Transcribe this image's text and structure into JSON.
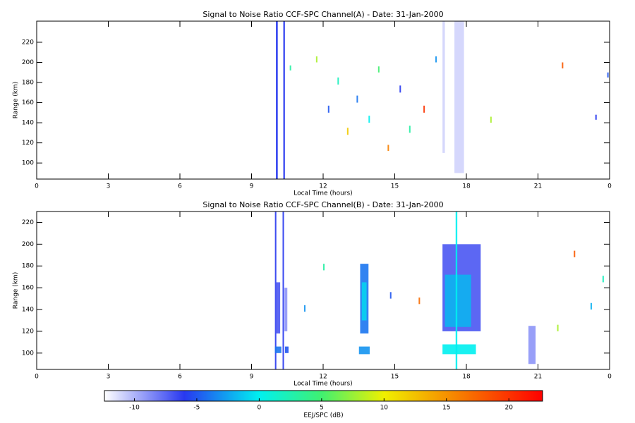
{
  "chart_data": [
    {
      "type": "heatmap",
      "title": "Signal to Noise Ratio CCF-SPC Channel(A) - Date: 31-Jan-2000",
      "xlabel": "Local Time (hours)",
      "ylabel": "Range (km)",
      "xlim": [
        0,
        24
      ],
      "xticks": [
        0,
        3,
        6,
        9,
        12,
        15,
        18,
        21,
        {
          "value": 24,
          "label": "0"
        }
      ],
      "ylim": [
        84,
        241
      ],
      "yticks": [
        100,
        120,
        140,
        160,
        180,
        200,
        220
      ],
      "echoes": [
        {
          "x": [
            10.02,
            10.1
          ],
          "y": [
            84,
            241
          ],
          "value": -6
        },
        {
          "x": [
            10.33,
            10.4
          ],
          "y": [
            84,
            241
          ],
          "value": -6
        },
        {
          "x": [
            17.0,
            17.1
          ],
          "y": [
            110,
            241
          ],
          "value": -11
        },
        {
          "x": [
            17.5,
            17.9
          ],
          "y": [
            90,
            241
          ],
          "value": -11
        },
        {
          "x": [
            10.6,
            10.66
          ],
          "y": [
            192,
            197
          ],
          "value": 3
        },
        {
          "x": [
            11.7,
            11.76
          ],
          "y": [
            200,
            206
          ],
          "value": 8
        },
        {
          "x": [
            12.2,
            12.26
          ],
          "y": [
            150,
            157
          ],
          "value": -5
        },
        {
          "x": [
            12.6,
            12.66
          ],
          "y": [
            178,
            185
          ],
          "value": 2
        },
        {
          "x": [
            13.0,
            13.06
          ],
          "y": [
            128,
            135
          ],
          "value": 12
        },
        {
          "x": [
            13.4,
            13.46
          ],
          "y": [
            160,
            167
          ],
          "value": -4
        },
        {
          "x": [
            13.9,
            13.96
          ],
          "y": [
            140,
            147
          ],
          "value": 0
        },
        {
          "x": [
            14.3,
            14.36
          ],
          "y": [
            190,
            196
          ],
          "value": 5
        },
        {
          "x": [
            14.7,
            14.76
          ],
          "y": [
            112,
            118
          ],
          "value": 16
        },
        {
          "x": [
            15.2,
            15.26
          ],
          "y": [
            170,
            177
          ],
          "value": -6
        },
        {
          "x": [
            15.6,
            15.66
          ],
          "y": [
            130,
            137
          ],
          "value": 3
        },
        {
          "x": [
            16.2,
            16.26
          ],
          "y": [
            150,
            157
          ],
          "value": 20
        },
        {
          "x": [
            16.7,
            16.76
          ],
          "y": [
            200,
            206
          ],
          "value": -3
        },
        {
          "x": [
            19.0,
            19.06
          ],
          "y": [
            140,
            146
          ],
          "value": 8
        },
        {
          "x": [
            22.0,
            22.06
          ],
          "y": [
            194,
            200
          ],
          "value": 18
        },
        {
          "x": [
            23.4,
            23.46
          ],
          "y": [
            143,
            148
          ],
          "value": -6
        },
        {
          "x": [
            23.9,
            23.96
          ],
          "y": [
            185,
            190
          ],
          "value": -5
        }
      ]
    },
    {
      "type": "heatmap",
      "title": "Signal to Noise Ratio CCF-SPC Channel(B) - Date: 31-Jan-2000",
      "xlabel": "Local Time (hours)",
      "ylabel": "Range (km)",
      "xlim": [
        0,
        24
      ],
      "xticks": [
        0,
        3,
        6,
        9,
        12,
        15,
        18,
        21,
        {
          "value": 24,
          "label": "0"
        }
      ],
      "ylim": [
        85,
        230
      ],
      "yticks": [
        100,
        120,
        140,
        160,
        180,
        200,
        220
      ],
      "echoes": [
        {
          "x": [
            9.98,
            10.04
          ],
          "y": [
            85,
            230
          ],
          "value": -6
        },
        {
          "x": [
            10.3,
            10.36
          ],
          "y": [
            85,
            230
          ],
          "value": -6
        },
        {
          "x": [
            10.0,
            10.2
          ],
          "y": [
            118,
            165
          ],
          "value": -7
        },
        {
          "x": [
            10.38,
            10.5
          ],
          "y": [
            120,
            160
          ],
          "value": -9
        },
        {
          "x": [
            9.98,
            10.25
          ],
          "y": [
            100,
            106
          ],
          "value": -4
        },
        {
          "x": [
            10.4,
            10.55
          ],
          "y": [
            100,
            106
          ],
          "value": -5
        },
        {
          "x": [
            13.55,
            13.9
          ],
          "y": [
            118,
            182
          ],
          "value": -4
        },
        {
          "x": [
            13.62,
            13.82
          ],
          "y": [
            130,
            165
          ],
          "value": -1
        },
        {
          "x": [
            13.5,
            13.95
          ],
          "y": [
            99,
            106
          ],
          "value": -3
        },
        {
          "x": [
            17.0,
            18.6
          ],
          "y": [
            120,
            200
          ],
          "value": -7
        },
        {
          "x": [
            17.1,
            18.2
          ],
          "y": [
            124,
            172
          ],
          "value": -2
        },
        {
          "x": [
            17.0,
            18.4
          ],
          "y": [
            99,
            108
          ],
          "value": 0
        },
        {
          "x": [
            17.55,
            17.62
          ],
          "y": [
            85,
            230
          ],
          "value": 0
        },
        {
          "x": [
            20.6,
            20.9
          ],
          "y": [
            90,
            125
          ],
          "value": -9
        },
        {
          "x": [
            11.2,
            11.26
          ],
          "y": [
            138,
            144
          ],
          "value": -3
        },
        {
          "x": [
            12.0,
            12.06
          ],
          "y": [
            176,
            182
          ],
          "value": 3
        },
        {
          "x": [
            14.8,
            14.86
          ],
          "y": [
            150,
            156
          ],
          "value": -5
        },
        {
          "x": [
            16.0,
            16.06
          ],
          "y": [
            145,
            151
          ],
          "value": 17
        },
        {
          "x": [
            21.8,
            21.86
          ],
          "y": [
            120,
            126
          ],
          "value": 8
        },
        {
          "x": [
            22.5,
            22.56
          ],
          "y": [
            188,
            194
          ],
          "value": 18
        },
        {
          "x": [
            23.2,
            23.26
          ],
          "y": [
            140,
            146
          ],
          "value": -2
        },
        {
          "x": [
            23.7,
            23.76
          ],
          "y": [
            165,
            171
          ],
          "value": 2
        }
      ]
    },
    {
      "type": "colorbar",
      "label": "EEJ/SPC (dB)",
      "clim": [
        -12.4,
        22.7
      ],
      "ticks": [
        -10,
        -5,
        0,
        5,
        10,
        15,
        20
      ],
      "colormap": [
        {
          "value": -12.4,
          "color": "#ffffff"
        },
        {
          "value": -6,
          "color": "#2838f0"
        },
        {
          "value": 0,
          "color": "#00f0f0"
        },
        {
          "value": 5,
          "color": "#40f070"
        },
        {
          "value": 10,
          "color": "#f0f000"
        },
        {
          "value": 22.7,
          "color": "#ff0000"
        }
      ]
    }
  ]
}
